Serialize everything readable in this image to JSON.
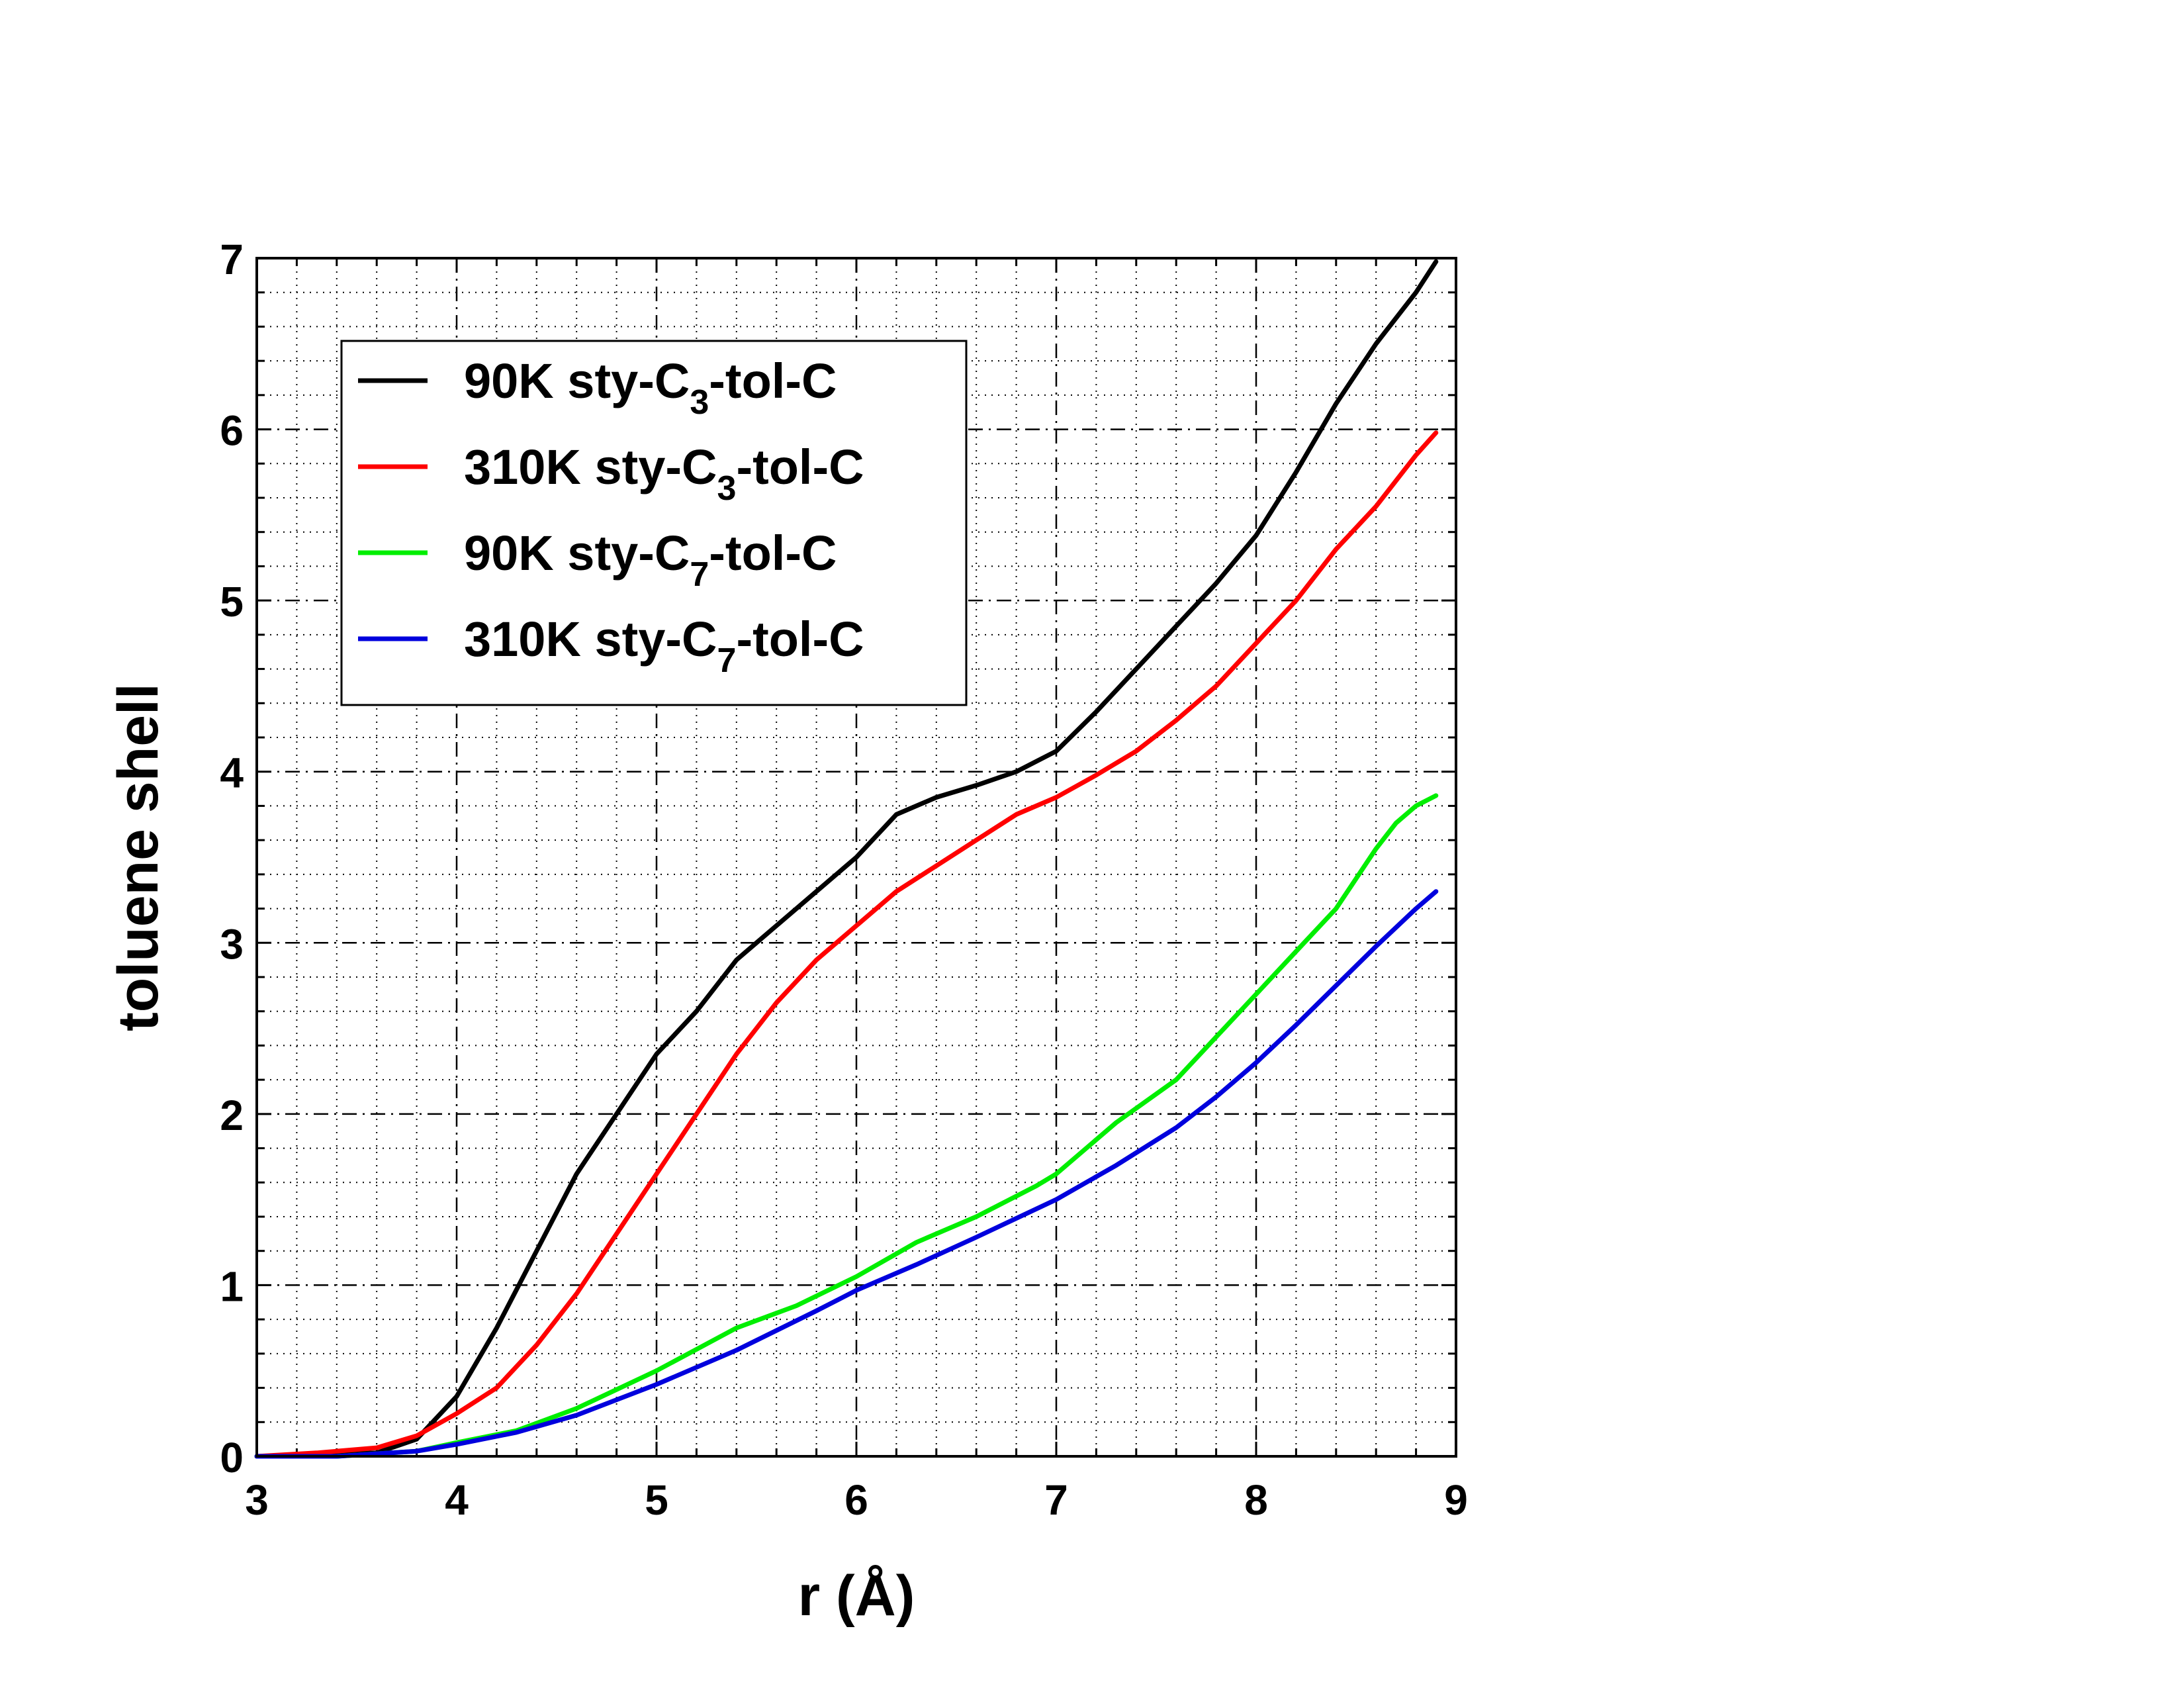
{
  "chart_data": {
    "type": "line",
    "xlabel": "r (Å)",
    "ylabel": "toluene shell",
    "xlim": [
      3,
      9
    ],
    "ylim": [
      0,
      7
    ],
    "xticks": [
      "3",
      "4",
      "5",
      "6",
      "7",
      "8",
      "9"
    ],
    "yticks": [
      "0",
      "1",
      "2",
      "3",
      "4",
      "5",
      "6",
      "7"
    ],
    "grid": "major dash-dot, minor dotted",
    "legend_position": "top-left",
    "series": [
      {
        "name": "90K sty-C3-tol-C",
        "legend_prefix": "90K sty-C",
        "legend_sub": "3",
        "legend_suffix": "-tol-C",
        "color": "#000000",
        "x": [
          3.0,
          3.3,
          3.6,
          3.8,
          4.0,
          4.2,
          4.4,
          4.6,
          4.8,
          5.0,
          5.2,
          5.4,
          5.6,
          5.8,
          6.0,
          6.2,
          6.4,
          6.6,
          6.8,
          7.0,
          7.2,
          7.4,
          7.6,
          7.8,
          8.0,
          8.2,
          8.4,
          8.6,
          8.8,
          8.9
        ],
        "y": [
          0.0,
          0.01,
          0.02,
          0.1,
          0.35,
          0.75,
          1.2,
          1.65,
          2.0,
          2.35,
          2.6,
          2.9,
          3.1,
          3.3,
          3.5,
          3.75,
          3.85,
          3.92,
          4.0,
          4.12,
          4.35,
          4.6,
          4.85,
          5.1,
          5.38,
          5.75,
          6.15,
          6.5,
          6.8,
          6.98
        ]
      },
      {
        "name": "310K sty-C3-tol-C",
        "legend_prefix": "310K sty-C",
        "legend_sub": "3",
        "legend_suffix": "-tol-C",
        "color": "#ff0000",
        "x": [
          3.0,
          3.3,
          3.6,
          3.8,
          4.0,
          4.2,
          4.4,
          4.6,
          4.8,
          5.0,
          5.2,
          5.4,
          5.6,
          5.8,
          6.0,
          6.2,
          6.4,
          6.6,
          6.8,
          7.0,
          7.2,
          7.4,
          7.6,
          7.8,
          8.0,
          8.2,
          8.4,
          8.6,
          8.8,
          8.9
        ],
        "y": [
          0.0,
          0.02,
          0.05,
          0.12,
          0.25,
          0.4,
          0.65,
          0.95,
          1.3,
          1.65,
          2.0,
          2.35,
          2.65,
          2.9,
          3.1,
          3.3,
          3.45,
          3.6,
          3.75,
          3.85,
          3.98,
          4.12,
          4.3,
          4.5,
          4.75,
          5.0,
          5.3,
          5.55,
          5.85,
          5.98
        ]
      },
      {
        "name": "90K sty-C7-tol-C",
        "legend_prefix": "90K sty-C",
        "legend_sub": "7",
        "legend_suffix": "-tol-C",
        "color": "#00ee00",
        "x": [
          3.0,
          3.4,
          3.8,
          4.0,
          4.3,
          4.6,
          5.0,
          5.4,
          5.7,
          6.0,
          6.3,
          6.6,
          6.9,
          7.0,
          7.3,
          7.6,
          7.8,
          8.0,
          8.2,
          8.4,
          8.6,
          8.7,
          8.8,
          8.9
        ],
        "y": [
          0.0,
          0.0,
          0.03,
          0.08,
          0.15,
          0.28,
          0.5,
          0.75,
          0.88,
          1.05,
          1.25,
          1.4,
          1.58,
          1.65,
          1.95,
          2.2,
          2.45,
          2.7,
          2.95,
          3.2,
          3.55,
          3.7,
          3.8,
          3.86
        ]
      },
      {
        "name": "310K sty-C7-tol-C",
        "legend_prefix": "310K sty-C",
        "legend_sub": "7",
        "legend_suffix": "-tol-C",
        "color": "#0000dd",
        "x": [
          3.0,
          3.4,
          3.8,
          4.0,
          4.3,
          4.6,
          5.0,
          5.4,
          5.8,
          6.0,
          6.3,
          6.6,
          7.0,
          7.3,
          7.6,
          7.8,
          8.0,
          8.2,
          8.4,
          8.6,
          8.8,
          8.9
        ],
        "y": [
          0.0,
          0.0,
          0.03,
          0.07,
          0.14,
          0.24,
          0.42,
          0.62,
          0.85,
          0.97,
          1.12,
          1.28,
          1.5,
          1.7,
          1.92,
          2.1,
          2.3,
          2.52,
          2.75,
          2.98,
          3.2,
          3.3
        ]
      }
    ]
  }
}
